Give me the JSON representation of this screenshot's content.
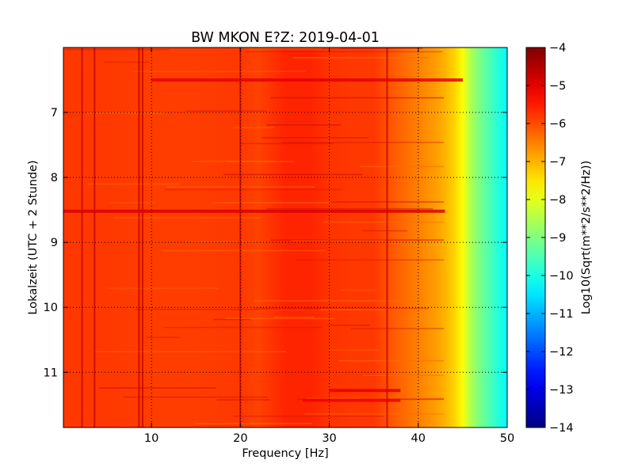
{
  "chart_data": {
    "type": "heatmap",
    "title": "BW MKON E?Z: 2019-04-01",
    "xlabel": "Frequency [Hz]",
    "ylabel": "Lokalzeit (UTC + 2 Stunde)",
    "xlim": [
      0.1,
      50
    ],
    "ylim": [
      6.0,
      11.85
    ],
    "y_inverted": true,
    "xticks": [
      10,
      20,
      30,
      40,
      50
    ],
    "yticks": [
      7,
      8,
      9,
      10,
      11
    ],
    "grid": true,
    "colorbar": {
      "label": "Log10(Sqrt(m**2/s**2/Hz))",
      "min": -14,
      "max": -4,
      "ticks": [
        -4,
        -5,
        -6,
        -7,
        -8,
        -9,
        -10,
        -11,
        -12,
        -13,
        -14
      ],
      "colormap": "jet"
    },
    "frequency_profile": {
      "freq_hz": [
        0,
        5,
        10,
        15,
        20,
        22,
        25,
        28,
        30,
        33,
        35,
        37,
        40,
        42,
        43,
        44,
        45,
        46,
        47,
        48,
        49,
        50
      ],
      "log10_amplitude": [
        -5.8,
        -5.8,
        -5.85,
        -5.85,
        -5.8,
        -5.9,
        -5.6,
        -5.6,
        -5.75,
        -5.8,
        -5.8,
        -6.1,
        -6.5,
        -6.8,
        -7.0,
        -7.3,
        -7.8,
        -8.6,
        -9.1,
        -9.5,
        -9.9,
        -10.3
      ]
    },
    "vertical_lines_hz": [
      2.2,
      3.6,
      8.6,
      9.0,
      20.0,
      36.5
    ],
    "bright_bands": [
      {
        "time": 6.5,
        "freq_from": 10,
        "freq_to": 45,
        "level": -5.0
      },
      {
        "time": 8.52,
        "freq_from": 0,
        "freq_to": 43,
        "level": -4.9
      },
      {
        "time": 11.28,
        "freq_from": 30,
        "freq_to": 38,
        "level": -5.0
      },
      {
        "time": 11.43,
        "freq_from": 27,
        "freq_to": 38,
        "level": -5.1
      }
    ]
  }
}
